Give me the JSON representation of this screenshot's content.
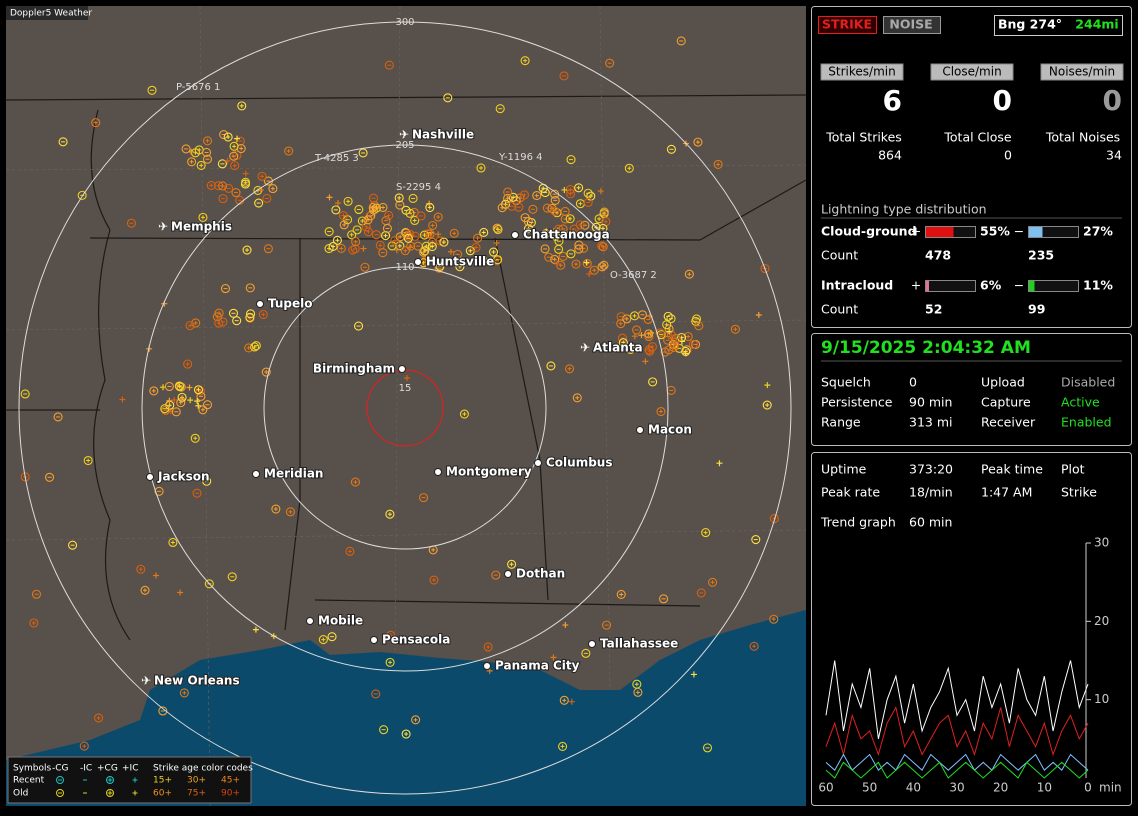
{
  "map": {
    "title": "Doppler5 Weather",
    "ring_labels": [
      "300",
      "205",
      "110",
      "15"
    ],
    "stations": [
      "P-5676 1",
      "T-4285 3",
      "S-2295 4",
      "Y-1196 4",
      "O-3687 2"
    ],
    "cities": [
      {
        "name": "Nashville",
        "airport": true
      },
      {
        "name": "Memphis",
        "airport": true
      },
      {
        "name": "Chattanooga",
        "airport": false
      },
      {
        "name": "Huntsville",
        "airport": false
      },
      {
        "name": "Tupelo",
        "airport": false
      },
      {
        "name": "Birmingham",
        "airport": false
      },
      {
        "name": "Atlanta",
        "airport": true
      },
      {
        "name": "Macon",
        "airport": false
      },
      {
        "name": "Jackson",
        "airport": false
      },
      {
        "name": "Meridian",
        "airport": false
      },
      {
        "name": "Montgomery",
        "airport": false
      },
      {
        "name": "Columbus",
        "airport": false
      },
      {
        "name": "Dothan",
        "airport": false
      },
      {
        "name": "Mobile",
        "airport": false
      },
      {
        "name": "Pensacola",
        "airport": false
      },
      {
        "name": "Tallahassee",
        "airport": false
      },
      {
        "name": "Panama City",
        "airport": false
      },
      {
        "name": "New Orleans",
        "airport": true
      }
    ],
    "legend": {
      "symbols": "Symbols",
      "types": [
        "-CG",
        "-IC",
        "+CG",
        "+IC"
      ],
      "age_title": "Strike age color codes",
      "rows": [
        "Recent",
        "Old"
      ],
      "ages": [
        "15+",
        "30+",
        "45+",
        "60+",
        "75+",
        "90+"
      ]
    }
  },
  "panel": {
    "modes": [
      "STRIKE",
      "NOISE"
    ],
    "bearing": "Bng 274°",
    "distance": "244mi",
    "rates": [
      {
        "label": "Strikes/min",
        "value": "6"
      },
      {
        "label": "Close/min",
        "value": "0"
      },
      {
        "label": "Noises/min",
        "value": "0"
      }
    ],
    "totals": [
      {
        "label": "Total Strikes",
        "value": "864"
      },
      {
        "label": "Total Close",
        "value": "0"
      },
      {
        "label": "Total Noises",
        "value": "34"
      }
    ],
    "distribution": {
      "title": "Lightning type distribution",
      "count_label": "Count",
      "plus": "+",
      "minus": "−",
      "rows": [
        {
          "name": "Cloud-ground",
          "positive": {
            "value": 55,
            "label": "55%"
          },
          "negative": {
            "value": 27,
            "label": "27%"
          },
          "positive_count": "478",
          "negative_count": "235"
        },
        {
          "name": "Intracloud",
          "positive": {
            "value": 6,
            "label": "6%"
          },
          "negative": {
            "value": 11,
            "label": "11%"
          },
          "positive_count": "52",
          "negative_count": "99"
        }
      ]
    },
    "datetime": "9/15/2025 2:04:32 AM",
    "status": [
      [
        "Squelch",
        "0",
        "Upload",
        "Disabled"
      ],
      [
        "Persistence",
        "90 min",
        "Capture",
        "Active"
      ],
      [
        "Range",
        "313 mi",
        "Receiver",
        "Enabled"
      ]
    ],
    "stats": [
      [
        "Uptime",
        "373:20",
        "Peak time",
        "Plot"
      ],
      [
        "Peak rate",
        "18/min",
        "1:47 AM",
        "Strike"
      ],
      [
        "Trend graph",
        "60 min"
      ]
    ]
  },
  "chart_data": {
    "type": "line",
    "x": [
      60,
      58,
      56,
      54,
      52,
      50,
      48,
      46,
      44,
      42,
      40,
      38,
      36,
      34,
      32,
      30,
      28,
      26,
      24,
      22,
      20,
      18,
      16,
      14,
      12,
      10,
      8,
      6,
      4,
      2,
      0
    ],
    "xlim": [
      60,
      0
    ],
    "xticks": [
      60,
      50,
      40,
      30,
      20,
      10,
      0
    ],
    "x_unit": "min",
    "ylim": [
      0,
      30
    ],
    "yticks": [
      10,
      20,
      30
    ],
    "series": [
      {
        "color": "#ffffff",
        "values": [
          8,
          15,
          6,
          12,
          9,
          14,
          5,
          10,
          13,
          7,
          12,
          6,
          9,
          11,
          14,
          8,
          10,
          6,
          13,
          9,
          12,
          7,
          14,
          10,
          8,
          13,
          6,
          11,
          15,
          9,
          12
        ]
      },
      {
        "color": "#e02020",
        "values": [
          4,
          7,
          3,
          8,
          5,
          6,
          3,
          7,
          9,
          4,
          6,
          3,
          5,
          7,
          8,
          4,
          6,
          3,
          7,
          5,
          9,
          4,
          8,
          6,
          4,
          7,
          3,
          6,
          8,
          5,
          7
        ]
      },
      {
        "color": "#80c0ff",
        "values": [
          2,
          1,
          3,
          1,
          2,
          3,
          1,
          2,
          1,
          3,
          2,
          1,
          3,
          2,
          1,
          2,
          3,
          1,
          2,
          1,
          3,
          2,
          1,
          2,
          3,
          1,
          2,
          1,
          3,
          2,
          1
        ]
      },
      {
        "color": "#20e020",
        "values": [
          1,
          0,
          2,
          1,
          0,
          1,
          2,
          0,
          1,
          2,
          1,
          0,
          1,
          2,
          0,
          1,
          2,
          1,
          0,
          1,
          2,
          1,
          0,
          2,
          1,
          0,
          1,
          2,
          1,
          0,
          1
        ]
      }
    ]
  }
}
